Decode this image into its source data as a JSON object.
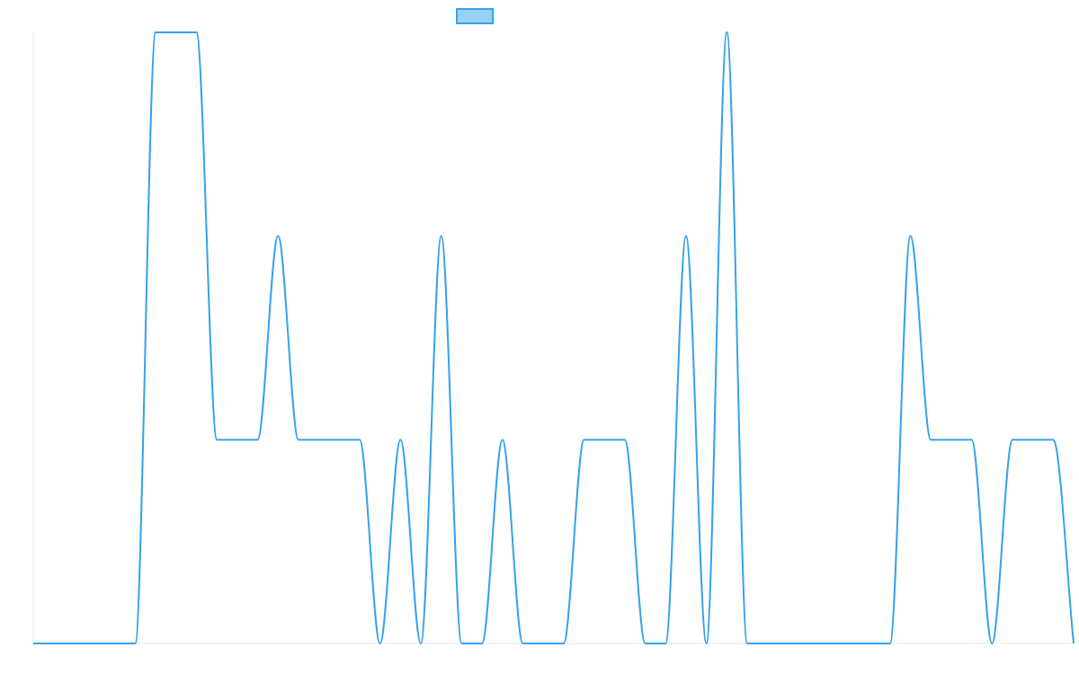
{
  "chart_data": {
    "type": "line",
    "title": "",
    "xlabel": "",
    "ylabel": "",
    "x": [
      0,
      1,
      2,
      3,
      4,
      5,
      6,
      7,
      8,
      9,
      10,
      11,
      12,
      13,
      14,
      15,
      16,
      17,
      18,
      19,
      20,
      21,
      22,
      23,
      24,
      25,
      26,
      27,
      28,
      29,
      30,
      31,
      32,
      33,
      34,
      35,
      36,
      37,
      38,
      39,
      40,
      41,
      42,
      43,
      44,
      45,
      46,
      47,
      48,
      49,
      50,
      51
    ],
    "ylim": [
      0,
      3
    ],
    "series": [
      {
        "name": "",
        "values": [
          0,
          0,
          0,
          0,
          0,
          0,
          3,
          3,
          3,
          1,
          1,
          1,
          2,
          1,
          1,
          1,
          1,
          0,
          1,
          0,
          2,
          0,
          0,
          1,
          0,
          0,
          0,
          1,
          1,
          1,
          0,
          0,
          2,
          0,
          3,
          0,
          0,
          0,
          0,
          0,
          0,
          0,
          0,
          2,
          1,
          1,
          1,
          0,
          1,
          1,
          1,
          0
        ]
      }
    ],
    "legend": {
      "position": "top-center",
      "entries": [
        ""
      ]
    },
    "grid": false,
    "colors": {
      "line": "#36a2eb",
      "legend_fill": "#9ad0f5",
      "axis": "#e8e8e8"
    }
  }
}
